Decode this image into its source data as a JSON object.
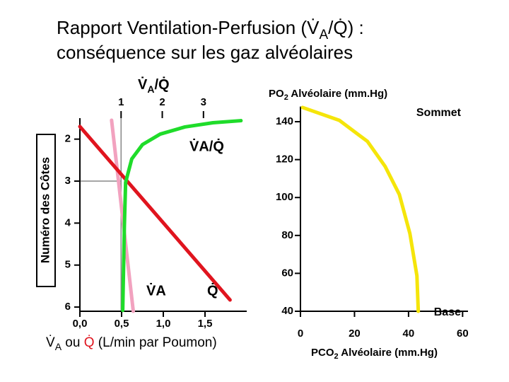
{
  "title": [
    "Rapport Ventilation-Perfusion (V̇",
    "A",
    "/Q̇) :",
    "conséquence sur les gaz alvéolaires"
  ],
  "chart_data": [
    {
      "type": "line",
      "ylabel": "Numéro des Côtes",
      "xlabel": [
        "V̇",
        "A",
        " ou ",
        "Q̇",
        " (L/min par Poumon)"
      ],
      "x2label": [
        "V̇",
        "A",
        "/Q̇"
      ],
      "xlim": [
        0,
        2
      ],
      "xticks": [
        {
          "value": 0,
          "label": "0,0"
        },
        {
          "value": 0.5,
          "label": "0,5"
        },
        {
          "value": 1,
          "label": "1,0"
        },
        {
          "value": 1.5,
          "label": "1,5"
        }
      ],
      "x2lim": [
        0,
        4.05
      ],
      "x2ticks": [
        1,
        2,
        3
      ],
      "ylim": [
        6.1,
        1.5
      ],
      "yticks": [
        2,
        3,
        4,
        5,
        6
      ],
      "series": [
        {
          "name": "V̇A",
          "color": "#f2a2bf",
          "x": [
            0.38,
            0.64
          ],
          "values": [
            1.55,
            6.1
          ]
        },
        {
          "name": "Q̇",
          "color": "#e0141e",
          "x": [
            0,
            1.8
          ],
          "values": [
            1.7,
            5.83
          ]
        },
        {
          "name": "V̇A/Q̇",
          "color": "#1fdc2a",
          "axis": "x2",
          "x": [
            1.04,
            1.08,
            1.11,
            1.26,
            1.52,
            1.95,
            2.55,
            3.23,
            3.91
          ],
          "values": [
            6.08,
            4.07,
            3.03,
            2.47,
            2.13,
            1.88,
            1.71,
            1.61,
            1.56
          ]
        }
      ]
    },
    {
      "type": "line",
      "ylabel": [
        "PO",
        "2",
        " Alvéolaire (mm.Hg)"
      ],
      "xlabel": [
        "PCO",
        "2",
        " Alvéolaire (mm.Hg)"
      ],
      "xlim": [
        0,
        62
      ],
      "xticks": [
        0,
        20,
        40,
        60
      ],
      "ylim": [
        40,
        148
      ],
      "yticks": [
        140,
        120,
        100,
        80,
        60,
        40
      ],
      "annotations": [
        "Sommet",
        "Base"
      ],
      "series": [
        {
          "color": "#f5e50a",
          "x": [
            0.8,
            14.4,
            24.8,
            31.3,
            36.6,
            40.5,
            43.1,
            43.6
          ],
          "values": [
            147.5,
            140.7,
            129.6,
            116.5,
            101.6,
            81.0,
            58.7,
            40
          ]
        }
      ]
    }
  ]
}
